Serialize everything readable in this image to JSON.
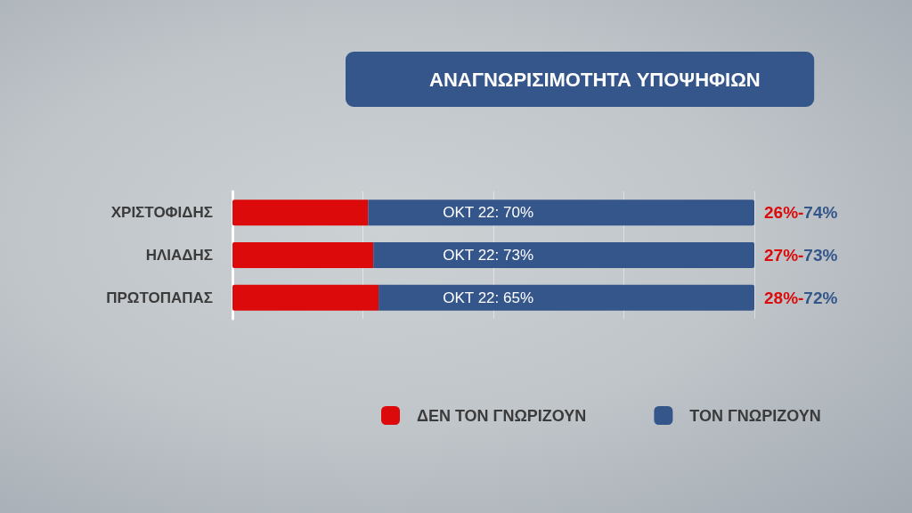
{
  "chart_data": {
    "type": "bar",
    "title": "ΑΝΑΓΝΩΡΙΣΙΜΟΤΗΤΑ ΥΠΟΨΗΦΙΩΝ",
    "orientation": "horizontal",
    "stacked": true,
    "categories": [
      "ΧΡΙΣΤΟΦΙΔΗΣ",
      "ΗΛΙΑΔΗΣ",
      "ΠΡΩΤΟΠΑΠΑΣ"
    ],
    "series": [
      {
        "name": "ΔΕΝ ΤΟΝ ΓΝΩΡΙΖΟΥΝ",
        "color": "#dc0a0a",
        "values": [
          26,
          27,
          28
        ],
        "value_labels": [
          "26%-",
          "27%-",
          "28%-"
        ]
      },
      {
        "name": "ΤΟΝ ΓΝΩΡΙΖΟΥΝ",
        "color": "#34568a",
        "values": [
          74,
          73,
          72
        ],
        "value_labels": [
          "74%",
          "73%",
          "72%"
        ]
      }
    ],
    "xlim": [
      0,
      100
    ],
    "xticks": [
      {
        "value": 0,
        "label": null
      },
      {
        "value": 25,
        "label": null
      },
      {
        "value": 50,
        "label": null
      },
      {
        "value": 75,
        "label": null
      },
      {
        "value": 100,
        "label": null
      }
    ],
    "annotations": [
      "ΟΚΤ 22: 70%",
      "ΟΚΤ 22: 73%",
      "ΟΚΤ 22: 65%"
    ],
    "grid": "x",
    "legend": "bottom",
    "tick_labels": "y"
  }
}
